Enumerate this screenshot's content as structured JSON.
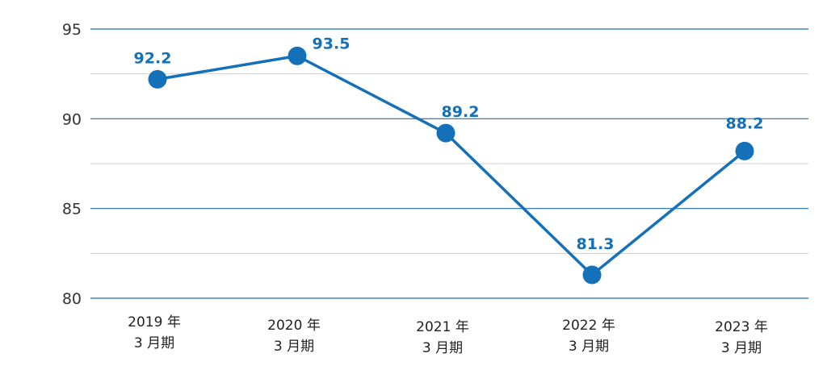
{
  "chart_data": {
    "type": "line",
    "title": "",
    "xlabel": "",
    "ylabel": "",
    "categories": [
      "2019 年\n3 月期",
      "2020 年\n3 月期",
      "2021 年\n3 月期",
      "2022 年\n3 月期",
      "2023 年\n3 月期"
    ],
    "category_lines": [
      [
        "2019 年",
        "3 月期"
      ],
      [
        "2020 年",
        "3 月期"
      ],
      [
        "2021 年",
        "3 月期"
      ],
      [
        "2022 年",
        "3 月期"
      ],
      [
        "2023 年",
        "3 月期"
      ]
    ],
    "series": [
      {
        "values": [
          92.2,
          93.5,
          89.2,
          81.3,
          88.2
        ],
        "data_labels": [
          "92.2",
          "93.5",
          "89.2",
          "81.3",
          "88.2"
        ]
      }
    ],
    "ylim": [
      80,
      95
    ],
    "yticks": [
      80,
      85,
      90,
      95
    ],
    "ytick_labels": [
      "80",
      "85",
      "90",
      "95"
    ],
    "minor_gridlines": [
      82.5,
      87.5,
      92.5
    ],
    "grid": true,
    "legend": "none",
    "colors": {
      "line": "#1470b8",
      "marker": "#1470b8",
      "data_label": "#1470b8",
      "major_grid": "#1a6fb0",
      "minor_grid": "#cfcfcf",
      "axis_text": "#333333"
    }
  }
}
